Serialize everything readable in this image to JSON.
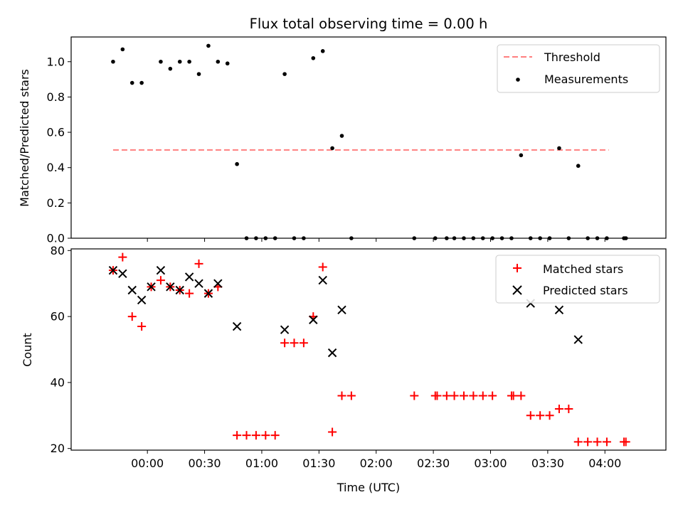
{
  "figure": {
    "title": "Flux total observing time = 0.00 h",
    "xlabel": "Time (UTC)"
  },
  "chart_data": [
    {
      "type": "scatter",
      "ylabel": "Matched/Predicted stars",
      "xlim": [
        "23:20",
        "04:32"
      ],
      "ylim": [
        0,
        1.14
      ],
      "yticks": [
        "0.0",
        "0.2",
        "0.4",
        "0.6",
        "0.8",
        "1.0"
      ],
      "ytick_values": [
        0,
        0.2,
        0.4,
        0.6,
        0.8,
        1.0
      ],
      "legend": {
        "placement": "top-right"
      },
      "series": [
        {
          "name": "Threshold",
          "kind": "line",
          "style": "dashed",
          "color": "#ff7f7f",
          "x": [
            "23:42",
            "04:02"
          ],
          "y": [
            0.5,
            0.5
          ]
        },
        {
          "name": "Measurements",
          "kind": "points",
          "color": "#000000",
          "x": [
            "23:42",
            "23:47",
            "23:52",
            "23:57",
            "00:07",
            "00:12",
            "00:17",
            "00:22",
            "00:27",
            "00:32",
            "00:37",
            "00:42",
            "00:47",
            "00:52",
            "00:57",
            "01:02",
            "01:07",
            "01:12",
            "01:17",
            "01:22",
            "01:27",
            "01:32",
            "01:37",
            "01:42",
            "01:47",
            "02:20",
            "02:31",
            "02:37",
            "02:41",
            "02:46",
            "02:51",
            "02:56",
            "03:01",
            "03:06",
            "03:11",
            "03:16",
            "03:21",
            "03:26",
            "03:31",
            "03:36",
            "03:41",
            "03:46",
            "03:51",
            "03:56",
            "04:01",
            "04:10",
            "04:11"
          ],
          "y": [
            1.0,
            1.07,
            0.88,
            0.88,
            1.0,
            0.96,
            1.0,
            1.0,
            0.93,
            1.09,
            1.0,
            0.99,
            0.42,
            0.0,
            0.0,
            0.0,
            0.0,
            0.93,
            0.0,
            0.0,
            1.02,
            1.06,
            0.51,
            0.58,
            0.0,
            0.0,
            0.0,
            0.0,
            0.0,
            0.0,
            0.0,
            0.0,
            0.0,
            0.0,
            0.0,
            0.47,
            0.0,
            0.0,
            0.0,
            0.51,
            0.0,
            0.41,
            0.0,
            0.0,
            0.0,
            0.0,
            0.0
          ]
        }
      ]
    },
    {
      "type": "scatter",
      "ylabel": "Count",
      "xlim": [
        "23:20",
        "04:32"
      ],
      "ylim": [
        19.5,
        80.5
      ],
      "yticks": [
        "20",
        "40",
        "60",
        "80"
      ],
      "ytick_values": [
        20,
        40,
        60,
        80
      ],
      "xticks": [
        "00:00",
        "00:30",
        "01:00",
        "01:30",
        "02:00",
        "02:30",
        "03:00",
        "03:30",
        "04:00"
      ],
      "xtick_values": [
        "00:00",
        "00:30",
        "01:00",
        "01:30",
        "02:00",
        "02:30",
        "03:00",
        "03:30",
        "04:00"
      ],
      "legend": {
        "placement": "top-right"
      },
      "series": [
        {
          "name": "Matched stars",
          "marker": "+",
          "color": "#ff0000",
          "x": [
            "23:42",
            "23:47",
            "23:52",
            "23:57",
            "00:02",
            "00:07",
            "00:12",
            "00:17",
            "00:22",
            "00:27",
            "00:32",
            "00:37",
            "00:47",
            "00:52",
            "00:57",
            "01:02",
            "01:07",
            "01:12",
            "01:17",
            "01:22",
            "01:27",
            "01:32",
            "01:37",
            "01:42",
            "01:47",
            "02:20",
            "02:31",
            "02:32",
            "02:37",
            "02:41",
            "02:46",
            "02:51",
            "02:56",
            "03:01",
            "03:11",
            "03:12",
            "03:16",
            "03:21",
            "03:26",
            "03:31",
            "03:36",
            "03:41",
            "03:46",
            "03:51",
            "03:56",
            "04:01",
            "04:10",
            "04:11"
          ],
          "y": [
            74,
            78,
            60,
            57,
            69,
            71,
            69,
            68,
            67,
            76,
            67,
            69,
            24,
            24,
            24,
            24,
            24,
            52,
            52,
            52,
            60,
            75,
            25,
            36,
            36,
            36,
            36,
            36,
            36,
            36,
            36,
            36,
            36,
            36,
            36,
            36,
            36,
            30,
            30,
            30,
            32,
            32,
            22,
            22,
            22,
            22,
            22,
            22
          ]
        },
        {
          "name": "Predicted stars",
          "marker": "x",
          "color": "#000000",
          "x": [
            "23:42",
            "23:47",
            "23:52",
            "23:57",
            "00:02",
            "00:07",
            "00:12",
            "00:17",
            "00:22",
            "00:27",
            "00:32",
            "00:37",
            "00:47",
            "01:12",
            "01:27",
            "01:32",
            "01:37",
            "01:42",
            "03:21",
            "03:36",
            "03:46"
          ],
          "y": [
            74,
            73,
            68,
            65,
            69,
            74,
            69,
            68,
            72,
            70,
            67,
            70,
            57,
            56,
            59,
            71,
            49,
            62,
            64,
            62,
            53
          ]
        }
      ]
    }
  ]
}
